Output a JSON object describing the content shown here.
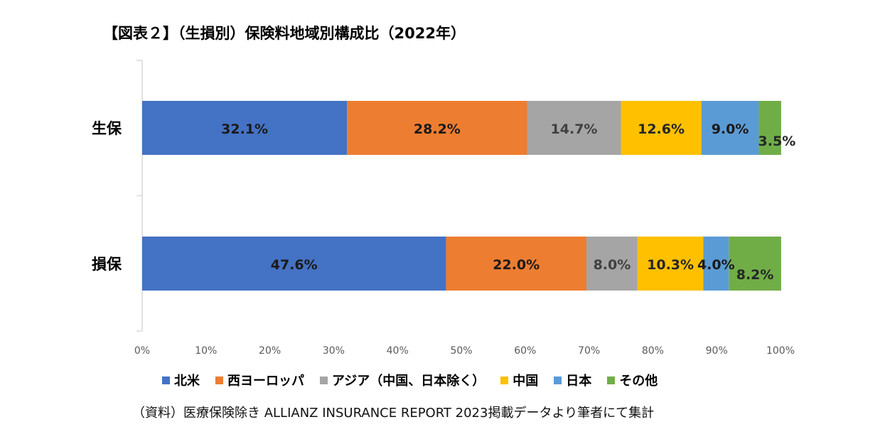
{
  "title": "【図表２】（生損別）保険料地域別構成比（2022年）",
  "source": "（資料）医療保険除き ALLIANZ INSURANCE REPORT 2023掲載データより筆者にて集計",
  "chart_data": {
    "type": "bar",
    "orientation": "horizontal",
    "stacked": true,
    "categories": [
      "生保",
      "損保"
    ],
    "series": [
      {
        "name": "北米",
        "color": "#4472C4",
        "values": [
          32.1,
          47.6
        ],
        "labels": [
          "32.1%",
          "47.6%"
        ]
      },
      {
        "name": "西ヨーロッパ",
        "color": "#ED7D31",
        "values": [
          28.2,
          22.0
        ],
        "labels": [
          "28.2%",
          "22.0%"
        ]
      },
      {
        "name": "アジア（中国、日本除く）",
        "color": "#A5A5A5",
        "values": [
          14.7,
          8.0
        ],
        "labels": [
          "14.7%",
          "8.0%"
        ]
      },
      {
        "name": "中国",
        "color": "#FFC000",
        "values": [
          12.6,
          10.3
        ],
        "labels": [
          "12.6%",
          "10.3%"
        ]
      },
      {
        "name": "日本",
        "color": "#5B9BD5",
        "values": [
          9.0,
          4.0
        ],
        "labels": [
          "9.0%",
          "4.0%"
        ]
      },
      {
        "name": "その他",
        "color": "#70AD47",
        "values": [
          3.5,
          8.2
        ],
        "labels": [
          "3.5%",
          "8.2%"
        ]
      }
    ],
    "xlim": [
      0,
      100
    ],
    "xticks": [
      "0%",
      "10%",
      "20%",
      "30%",
      "40%",
      "50%",
      "60%",
      "70%",
      "80%",
      "90%",
      "100%"
    ],
    "grid": false,
    "legend_position": "bottom"
  }
}
